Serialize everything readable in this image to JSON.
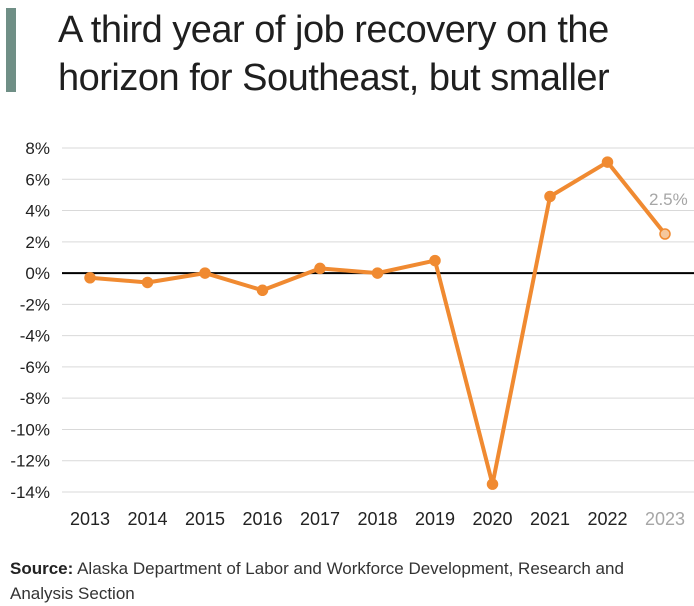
{
  "title": "A third year of job recovery on the horizon for Southeast, but smaller",
  "source": {
    "label": "Source:",
    "text": "Alaska Department of Labor and Workforce Development, Research and Analysis Section"
  },
  "colors": {
    "line": "#f08a31",
    "forecast_point": "#f5c79c",
    "forecast_text": "#a6a6a6",
    "zero_line": "#000000",
    "grid": "#d9d9d9",
    "title_bar": "#6f8f86"
  },
  "chart_data": {
    "type": "line",
    "categories": [
      "2013",
      "2014",
      "2015",
      "2016",
      "2017",
      "2018",
      "2019",
      "2020",
      "2021",
      "2022",
      "2023"
    ],
    "series": [
      {
        "values": [
          -0.3,
          -0.6,
          0.0,
          -1.1,
          0.3,
          0.0,
          0.8,
          -13.5,
          4.9,
          7.1,
          2.5
        ]
      }
    ],
    "forecast_index": 10,
    "annotation": "2.5%",
    "ylim": [
      -14,
      8
    ],
    "yticks": [
      "8%",
      "6%",
      "4%",
      "2%",
      "0%",
      "-2%",
      "-4%",
      "-6%",
      "-8%",
      "-10%",
      "-12%",
      "-14%"
    ],
    "grid": true,
    "legend": "none"
  }
}
